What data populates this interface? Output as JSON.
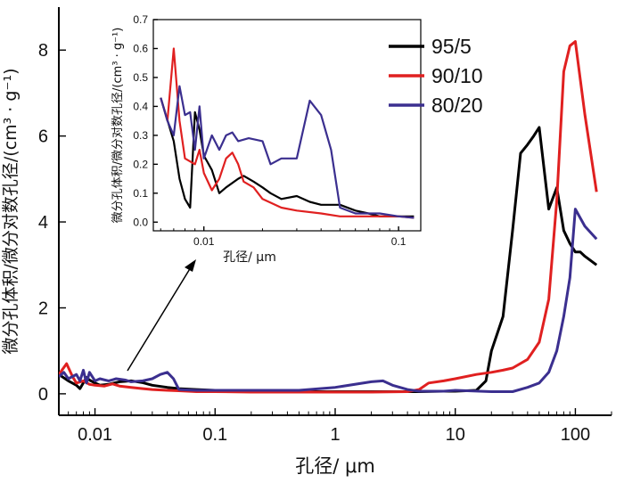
{
  "chart_data": [
    {
      "id": "main",
      "type": "line",
      "title": "",
      "xlabel": "孔径/ μm",
      "ylabel": "微分孔体积/微分对数孔径/(cm³ · g⁻¹)",
      "xscale": "log",
      "xlim": [
        0.005,
        200
      ],
      "ylim": [
        -0.5,
        9
      ],
      "xticks": [
        {
          "value": 0.01,
          "label": "0.01"
        },
        {
          "value": 0.1,
          "label": "0.1"
        },
        {
          "value": 1,
          "label": "1"
        },
        {
          "value": 10,
          "label": "10"
        },
        {
          "value": 100,
          "label": "100"
        }
      ],
      "yticks": [
        {
          "value": 0,
          "label": "0"
        },
        {
          "value": 2,
          "label": "2"
        },
        {
          "value": 4,
          "label": "4"
        },
        {
          "value": 6,
          "label": "6"
        },
        {
          "value": 8,
          "label": "8"
        }
      ],
      "legend_position": "top-right",
      "annotation": "arrow from low-diameter region to inset",
      "series": [
        {
          "name": "95/5",
          "color": "#000000",
          "x": [
            0.005,
            0.006,
            0.007,
            0.0075,
            0.0085,
            0.009,
            0.01,
            0.011,
            0.013,
            0.016,
            0.02,
            0.025,
            0.03,
            0.04,
            0.05,
            0.07,
            0.1,
            0.2,
            0.5,
            1,
            2,
            5,
            8,
            10,
            15,
            18,
            20,
            25,
            30,
            35,
            40,
            45,
            50,
            60,
            70,
            80,
            90,
            100,
            110,
            120,
            150
          ],
          "y": [
            0.45,
            0.3,
            0.2,
            0.12,
            0.38,
            0.32,
            0.25,
            0.2,
            0.22,
            0.28,
            0.3,
            0.26,
            0.2,
            0.15,
            0.12,
            0.1,
            0.08,
            0.06,
            0.05,
            0.05,
            0.05,
            0.05,
            0.06,
            0.06,
            0.08,
            0.3,
            1.0,
            1.8,
            3.8,
            5.6,
            5.8,
            6.0,
            6.2,
            4.3,
            4.8,
            3.8,
            3.5,
            3.3,
            3.3,
            3.2,
            3.0
          ]
        },
        {
          "name": "90/10",
          "color": "#e02020",
          "x": [
            0.005,
            0.0058,
            0.0065,
            0.007,
            0.008,
            0.009,
            0.01,
            0.012,
            0.014,
            0.016,
            0.02,
            0.025,
            0.03,
            0.04,
            0.05,
            0.07,
            0.1,
            0.2,
            0.5,
            1,
            2,
            4,
            5,
            6,
            8,
            10,
            15,
            20,
            25,
            30,
            40,
            50,
            60,
            70,
            80,
            90,
            100,
            120,
            150
          ],
          "y": [
            0.45,
            0.7,
            0.4,
            0.25,
            0.3,
            0.22,
            0.2,
            0.18,
            0.23,
            0.18,
            0.15,
            0.12,
            0.1,
            0.08,
            0.07,
            0.05,
            0.05,
            0.04,
            0.04,
            0.04,
            0.04,
            0.05,
            0.1,
            0.25,
            0.3,
            0.35,
            0.45,
            0.5,
            0.55,
            0.6,
            0.8,
            1.2,
            2.2,
            4.5,
            7.5,
            8.1,
            8.2,
            6.5,
            4.7
          ]
        },
        {
          "name": "80/20",
          "color": "#3b2f8f",
          "x": [
            0.005,
            0.0055,
            0.006,
            0.007,
            0.0075,
            0.008,
            0.0085,
            0.009,
            0.01,
            0.011,
            0.013,
            0.015,
            0.018,
            0.02,
            0.025,
            0.03,
            0.035,
            0.04,
            0.045,
            0.05,
            0.07,
            0.1,
            0.2,
            0.5,
            1,
            2,
            2.5,
            3,
            4,
            5,
            8,
            10,
            20,
            30,
            40,
            50,
            60,
            70,
            80,
            90,
            100,
            120,
            150
          ],
          "y": [
            0.4,
            0.5,
            0.35,
            0.45,
            0.3,
            0.55,
            0.25,
            0.5,
            0.3,
            0.35,
            0.3,
            0.35,
            0.32,
            0.28,
            0.3,
            0.35,
            0.45,
            0.5,
            0.35,
            0.1,
            0.08,
            0.08,
            0.08,
            0.08,
            0.15,
            0.28,
            0.3,
            0.2,
            0.1,
            0.06,
            0.06,
            0.08,
            0.05,
            0.05,
            0.15,
            0.25,
            0.5,
            1.0,
            1.8,
            2.7,
            4.3,
            3.9,
            3.6
          ]
        }
      ]
    },
    {
      "id": "inset",
      "type": "line",
      "title": "",
      "xlabel": "孔径/ μm",
      "ylabel": "微分孔体积/微分对数孔径/(cm³ · g⁻¹)",
      "xscale": "log",
      "xlim": [
        0.0055,
        0.13
      ],
      "ylim": [
        -0.03,
        0.7
      ],
      "xticks": [
        {
          "value": 0.01,
          "label": "0.01"
        },
        {
          "value": 0.1,
          "label": "0.1"
        }
      ],
      "yticks": [
        {
          "value": 0,
          "label": "0.0"
        },
        {
          "value": 0.1,
          "label": "0.1"
        },
        {
          "value": 0.2,
          "label": "0.2"
        },
        {
          "value": 0.3,
          "label": "0.3"
        },
        {
          "value": 0.4,
          "label": "0.4"
        },
        {
          "value": 0.5,
          "label": "0.5"
        },
        {
          "value": 0.6,
          "label": "0.6"
        },
        {
          "value": 0.7,
          "label": "0.7"
        }
      ],
      "series": [
        {
          "name": "95/5",
          "color": "#000000",
          "x": [
            0.006,
            0.007,
            0.0075,
            0.008,
            0.0085,
            0.009,
            0.0095,
            0.01,
            0.011,
            0.012,
            0.013,
            0.015,
            0.016,
            0.018,
            0.02,
            0.022,
            0.025,
            0.03,
            0.035,
            0.04,
            0.05,
            0.06,
            0.07,
            0.08,
            0.1,
            0.12
          ],
          "y": [
            0.43,
            0.28,
            0.15,
            0.08,
            0.05,
            0.38,
            0.32,
            0.23,
            0.18,
            0.1,
            0.12,
            0.15,
            0.16,
            0.14,
            0.12,
            0.1,
            0.08,
            0.09,
            0.07,
            0.06,
            0.06,
            0.04,
            0.03,
            0.02,
            0.02,
            0.02
          ]
        },
        {
          "name": "90/10",
          "color": "#e02020",
          "x": [
            0.006,
            0.0065,
            0.007,
            0.0075,
            0.008,
            0.009,
            0.0095,
            0.01,
            0.011,
            0.012,
            0.013,
            0.014,
            0.015,
            0.016,
            0.018,
            0.02,
            0.025,
            0.03,
            0.04,
            0.05,
            0.06,
            0.08,
            0.1,
            0.12
          ],
          "y": [
            0.43,
            0.35,
            0.6,
            0.35,
            0.22,
            0.2,
            0.25,
            0.17,
            0.11,
            0.15,
            0.22,
            0.24,
            0.2,
            0.14,
            0.12,
            0.08,
            0.05,
            0.04,
            0.03,
            0.02,
            0.02,
            0.02,
            0.02,
            0.015
          ]
        },
        {
          "name": "80/20",
          "color": "#3b2f8f",
          "x": [
            0.006,
            0.0065,
            0.007,
            0.0075,
            0.008,
            0.0085,
            0.009,
            0.0095,
            0.01,
            0.011,
            0.012,
            0.013,
            0.014,
            0.015,
            0.017,
            0.02,
            0.022,
            0.025,
            0.03,
            0.035,
            0.04,
            0.045,
            0.05,
            0.06,
            0.08,
            0.1,
            0.12
          ],
          "y": [
            0.43,
            0.35,
            0.3,
            0.47,
            0.37,
            0.38,
            0.25,
            0.4,
            0.22,
            0.3,
            0.25,
            0.3,
            0.31,
            0.28,
            0.29,
            0.28,
            0.2,
            0.22,
            0.22,
            0.42,
            0.37,
            0.25,
            0.05,
            0.03,
            0.03,
            0.02,
            0.015
          ]
        }
      ]
    }
  ]
}
